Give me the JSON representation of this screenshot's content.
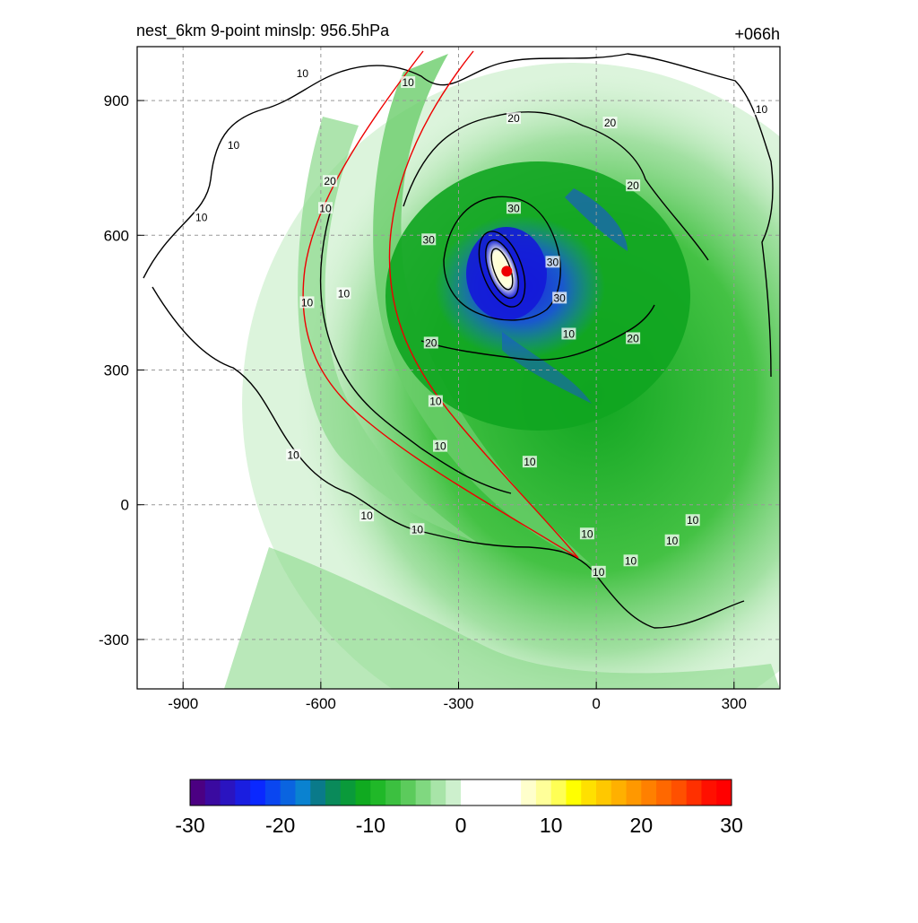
{
  "chart_data": {
    "type": "heatmap",
    "title": "nest_6km  9-point minslp: 956.5hPa",
    "subtitle": "+066h",
    "xlabel": "",
    "ylabel": "",
    "xlim": [
      -1000,
      400
    ],
    "ylim": [
      -410,
      1020
    ],
    "x_ticks": [
      -900,
      -600,
      -300,
      0,
      300
    ],
    "y_ticks": [
      900,
      600,
      300,
      0,
      -300
    ],
    "grid": true,
    "colorbar": {
      "ticks": [
        -30,
        -20,
        -10,
        0,
        10,
        20,
        30
      ],
      "range": [
        -30,
        30
      ],
      "colors": [
        "#4b0082",
        "#3a0aa0",
        "#2a14c0",
        "#1a1ee0",
        "#0a28ff",
        "#0a46f0",
        "#0a64e0",
        "#0a82d0",
        "#0a7a8a",
        "#0a8a5a",
        "#0a9a3a",
        "#10aa20",
        "#20b828",
        "#3cc040",
        "#5ccb5c",
        "#80d880",
        "#a8e4a8",
        "#cdf0cd",
        "#ffffff",
        "#ffffff",
        "#ffffff",
        "#ffffff",
        "#ffffcc",
        "#ffff99",
        "#ffff55",
        "#ffff00",
        "#ffe000",
        "#ffc800",
        "#ffb000",
        "#ff9800",
        "#ff8000",
        "#ff6800",
        "#ff5000",
        "#ff3000",
        "#ff1000",
        "#ff0000"
      ]
    },
    "storm_center": {
      "x": -195,
      "y": 520
    },
    "contour_labels": [
      {
        "text": "10",
        "x": -790,
        "y": 800
      },
      {
        "text": "10",
        "x": -860,
        "y": 640
      },
      {
        "text": "10",
        "x": -630,
        "y": 450
      },
      {
        "text": "10",
        "x": -550,
        "y": 470
      },
      {
        "text": "10",
        "x": -590,
        "y": 660
      },
      {
        "text": "10",
        "x": -640,
        "y": 960
      },
      {
        "text": "10",
        "x": -410,
        "y": 940
      },
      {
        "text": "10",
        "x": -660,
        "y": 110
      },
      {
        "text": "10",
        "x": -500,
        "y": -25
      },
      {
        "text": "10",
        "x": -390,
        "y": -55
      },
      {
        "text": "10",
        "x": -350,
        "y": 230
      },
      {
        "text": "10",
        "x": -340,
        "y": 130
      },
      {
        "text": "10",
        "x": -145,
        "y": 95
      },
      {
        "text": "10",
        "x": -20,
        "y": -65
      },
      {
        "text": "10",
        "x": 5,
        "y": -150
      },
      {
        "text": "10",
        "x": 75,
        "y": -125
      },
      {
        "text": "10",
        "x": 165,
        "y": -80
      },
      {
        "text": "10",
        "x": 210,
        "y": -35
      },
      {
        "text": "10",
        "x": -60,
        "y": 380
      },
      {
        "text": "10",
        "x": 360,
        "y": 880
      },
      {
        "text": "20",
        "x": -580,
        "y": 720
      },
      {
        "text": "20",
        "x": -180,
        "y": 860
      },
      {
        "text": "20",
        "x": 30,
        "y": 850
      },
      {
        "text": "20",
        "x": 80,
        "y": 710
      },
      {
        "text": "20",
        "x": -360,
        "y": 360
      },
      {
        "text": "20",
        "x": 80,
        "y": 370
      },
      {
        "text": "30",
        "x": -365,
        "y": 590
      },
      {
        "text": "30",
        "x": -180,
        "y": 660
      },
      {
        "text": "30",
        "x": -80,
        "y": 460
      },
      {
        "text": "30",
        "x": -95,
        "y": 540
      }
    ]
  }
}
